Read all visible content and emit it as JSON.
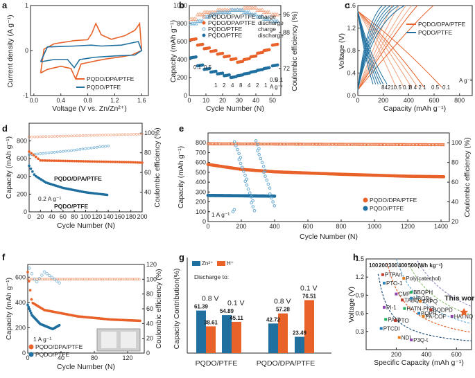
{
  "colors": {
    "orange": "#e8622a",
    "blue": "#1f6f9f",
    "light_orange": "#f0a07a",
    "light_blue": "#66a9d3",
    "grey": "#999999",
    "bar_orange": "#e8622a",
    "bar_blue": "#1f6f9f"
  },
  "chart_data": [
    {
      "panel": "a",
      "type": "line",
      "xlabel": "Voltage (V vs. Zn/Zn²⁺)",
      "ylabel": "Current density (A g⁻¹)",
      "xlim": [
        0,
        1.6
      ],
      "ylim": [
        -1,
        1
      ],
      "xticks": [
        "0.0",
        "0.4",
        "0.8",
        "1.2",
        "1.6"
      ],
      "yticks": [
        "-1",
        "0",
        "1"
      ],
      "series": [
        {
          "name": "PQDO/DPA/PTFE",
          "loop": [
            [
              0.1,
              -0.5
            ],
            [
              0.2,
              -0.42
            ],
            [
              0.4,
              -0.35
            ],
            [
              0.55,
              -0.4
            ],
            [
              0.62,
              -0.63
            ],
            [
              0.7,
              -0.3
            ],
            [
              0.95,
              -0.22
            ],
            [
              1.1,
              -0.18
            ],
            [
              1.3,
              -0.14
            ],
            [
              1.45,
              -0.1
            ],
            [
              1.6,
              0
            ],
            [
              1.57,
              0.6
            ],
            [
              1.5,
              0.45
            ],
            [
              1.35,
              0.33
            ],
            [
              1.15,
              0.25
            ],
            [
              1.0,
              0.35
            ],
            [
              0.92,
              0.6
            ],
            [
              0.86,
              0.38
            ],
            [
              0.8,
              0.24
            ],
            [
              0.6,
              0.22
            ],
            [
              0.3,
              0.15
            ],
            [
              0.15,
              0.03
            ],
            [
              0.1,
              -0.5
            ]
          ]
        },
        {
          "name": "PQDO/PTFE",
          "loop": [
            [
              0.1,
              -0.25
            ],
            [
              0.3,
              -0.2
            ],
            [
              0.5,
              -0.2
            ],
            [
              0.6,
              -0.38
            ],
            [
              0.68,
              -0.2
            ],
            [
              0.9,
              -0.15
            ],
            [
              1.2,
              -0.12
            ],
            [
              1.5,
              -0.1
            ],
            [
              1.6,
              0
            ],
            [
              1.55,
              0.2
            ],
            [
              1.3,
              0.12
            ],
            [
              1.0,
              0.1
            ],
            [
              0.85,
              0.12
            ],
            [
              0.6,
              0.1
            ],
            [
              0.2,
              0.08
            ],
            [
              0.1,
              -0.25
            ]
          ]
        }
      ]
    },
    {
      "panel": "b",
      "type": "scatter",
      "xlabel": "Cycle Number (N)",
      "ylabel": "Capacity (mAh g⁻¹)",
      "y2label": "Coulombic efficiency (%)",
      "xlim": [
        0,
        55
      ],
      "ylim": [
        0,
        1000
      ],
      "y2lim": [
        60,
        100
      ],
      "xticks": [
        "0",
        "10",
        "20",
        "30",
        "40",
        "50"
      ],
      "yticks": [
        "0",
        "200",
        "400",
        "600",
        "800",
        "1000"
      ],
      "y2ticks": [
        "72",
        "88",
        "96"
      ],
      "rates": [
        "0.1",
        "0.5",
        "1",
        "2",
        "4",
        "8",
        "4",
        "2",
        "1",
        "0.5",
        "0.1",
        "A g⁻¹"
      ],
      "series": [
        {
          "name": "PQDO/DPA/PTFE charge",
          "y_axis": "right",
          "values": [
            94,
            96,
            97,
            97,
            98,
            98,
            98,
            98,
            99,
            99,
            98,
            97,
            96
          ]
        },
        {
          "name": "PQDO/DPA/PTFE discharge",
          "values": [
            620,
            560,
            520,
            490,
            460,
            430,
            400,
            370,
            400,
            430,
            470,
            500,
            560
          ]
        },
        {
          "name": "PQDO/PTFE charge",
          "y_axis": "right",
          "values": [
            92,
            93,
            95,
            96,
            97,
            97,
            98,
            98,
            97,
            96,
            95,
            94,
            93
          ]
        },
        {
          "name": "PQDO/PTFE discharge",
          "values": [
            420,
            330,
            290,
            260,
            240,
            220,
            200,
            220,
            240,
            260,
            280,
            300,
            330
          ]
        }
      ]
    },
    {
      "panel": "c",
      "type": "line",
      "xlabel": "Capacity (mAh g⁻¹)",
      "ylabel": "Voltage (V)",
      "xlim": [
        0,
        900
      ],
      "ylim": [
        0,
        1.6
      ],
      "xticks": [
        "0",
        "200",
        "400",
        "600",
        "800"
      ],
      "yticks": [
        "0.0",
        "0.4",
        "0.8",
        "1.2",
        "1.6"
      ],
      "legend": [
        "PQDO/DPA/PTFE",
        "PQDO/PTFE"
      ],
      "rates_orange": "8 4 2 1",
      "rates_orange2": "0.5",
      "rates_orange3": "0.1",
      "rates_blue": "84210.5 0.1",
      "unit": "A g⁻¹",
      "orange_caps": [
        300,
        360,
        420,
        470,
        520,
        660
      ],
      "blue_caps": [
        120,
        140,
        160,
        180,
        200,
        230
      ]
    },
    {
      "panel": "d",
      "type": "scatter",
      "xlabel": "Cycle Number (N)",
      "ylabel": "Capacity (mAh g⁻¹)",
      "y2label": "Coulombic efficiency (%)",
      "xlim": [
        0,
        200
      ],
      "ylim": [
        0,
        1000
      ],
      "y2lim": [
        20,
        110
      ],
      "xticks": [
        "0",
        "20",
        "40",
        "60",
        "80",
        "100",
        "120",
        "140",
        "160",
        "180",
        "200"
      ],
      "yticks": [
        "0",
        "200",
        "400",
        "600",
        "800"
      ],
      "y2ticks": [
        "40",
        "60",
        "80",
        "100"
      ],
      "rate_label": "0.2 A g⁻¹",
      "series": [
        {
          "name": "PQDO/DPA/PTFE",
          "values": [
            [
              0,
              680
            ],
            [
              20,
              580
            ],
            [
              60,
              575
            ],
            [
              100,
              570
            ],
            [
              140,
              565
            ],
            [
              180,
              560
            ],
            [
              200,
              555
            ]
          ]
        },
        {
          "name": "PQDO/PTFE",
          "values": [
            [
              0,
              520
            ],
            [
              10,
              410
            ],
            [
              30,
              330
            ],
            [
              60,
              270
            ],
            [
              100,
              220
            ],
            [
              140,
              190
            ]
          ]
        },
        {
          "name": "PQDO/DPA/PTFE CE",
          "y_axis": "right",
          "values": [
            [
              0,
              96
            ],
            [
              200,
              99
            ]
          ]
        },
        {
          "name": "PQDO/PTFE CE",
          "y_axis": "right",
          "values": [
            [
              0,
              78
            ],
            [
              70,
              82
            ],
            [
              140,
              87
            ]
          ]
        }
      ]
    },
    {
      "panel": "e",
      "type": "scatter",
      "xlabel": "Cycle Number (N)",
      "ylabel": "Capacity (mAh g⁻¹)",
      "y2label": "Coulombic efficiency (%)",
      "xlim": [
        0,
        1450
      ],
      "ylim": [
        0,
        900
      ],
      "y2lim": [
        20,
        110
      ],
      "xticks": [
        "0",
        "200",
        "400",
        "600",
        "800",
        "1000",
        "1200",
        "1400"
      ],
      "yticks": [
        "0",
        "100",
        "200",
        "300",
        "400",
        "500",
        "600",
        "700",
        "800"
      ],
      "y2ticks": [
        "20",
        "40",
        "60",
        "80",
        "100"
      ],
      "rate_label": "1 A g⁻¹",
      "legend": [
        "PQDO/DPA/PTFE",
        "PQDO/PTFE"
      ],
      "series": [
        {
          "name": "PQDO/DPA/PTFE",
          "values": [
            [
              0,
              580
            ],
            [
              200,
              530
            ],
            [
              400,
              505
            ],
            [
              800,
              480
            ],
            [
              1200,
              460
            ],
            [
              1420,
              455
            ]
          ]
        },
        {
          "name": "PQDO/PTFE",
          "values": [
            [
              0,
              265
            ],
            [
              400,
              258
            ]
          ]
        }
      ]
    },
    {
      "panel": "f",
      "type": "scatter",
      "xlabel": "Cycle Number (N)",
      "ylabel": "Capacity (mAh g⁻¹)",
      "y2label": "Coulombic efficiency (%)",
      "xlim": [
        0,
        140
      ],
      "ylim": [
        0,
        700
      ],
      "y2lim": [
        0,
        120
      ],
      "xticks": [
        "0",
        "40",
        "80",
        "120"
      ],
      "yticks": [
        "0",
        "200",
        "400",
        "600"
      ],
      "y2ticks": [
        "0",
        "20",
        "40",
        "60",
        "80",
        "100",
        "120"
      ],
      "rate_label": "1 A g⁻¹",
      "legend": [
        "PQDO/DPA/PTFE",
        "PQDO/PTFE"
      ],
      "series": [
        {
          "name": "PQDO/DPA/PTFE",
          "values": [
            [
              0,
              640
            ],
            [
              5,
              400
            ],
            [
              20,
              340
            ],
            [
              60,
              290
            ],
            [
              100,
              265
            ],
            [
              135,
              255
            ]
          ]
        },
        {
          "name": "PQDO/PTFE",
          "values": [
            [
              0,
              380
            ],
            [
              5,
              300
            ],
            [
              15,
              230
            ],
            [
              30,
              190
            ],
            [
              38,
              220
            ]
          ]
        }
      ]
    },
    {
      "panel": "g",
      "type": "bar",
      "ylabel": "Capacity Contribution(%)",
      "legend": [
        "Zn²⁺",
        "H⁺"
      ],
      "heading": "Discharge to:",
      "groups": [
        "PQDO/PTFE",
        "PQDO/DPA/PTFE"
      ],
      "subgroups": [
        {
          "voltage": "0.8 V",
          "zn": 61.39,
          "h": 38.61
        },
        {
          "voltage": "0.1 V",
          "zn": 54.89,
          "h": 45.11
        },
        {
          "voltage": "0.8 V",
          "zn": 42.72,
          "h": 57.28
        },
        {
          "voltage": "0.1 V",
          "zn": 23.49,
          "h": 76.51
        }
      ]
    },
    {
      "panel": "h",
      "type": "scatter",
      "xlabel": "Specific Capacity (mAh g⁻¹)",
      "ylabel": "Voltage (V)",
      "xlim": [
        0,
        700
      ],
      "ylim": [
        0,
        1.5
      ],
      "xticks": [
        "200",
        "400",
        "600"
      ],
      "yticks": [
        "0.3",
        "0.6",
        "0.9",
        "1.2",
        "1.5"
      ],
      "energy_labels": [
        "100",
        "200",
        "300",
        "400",
        "500",
        "(Wh kg⁻¹)"
      ],
      "this_work": "This work",
      "points": [
        {
          "name": "PTPAn",
          "x": 110,
          "y": 1.24
        },
        {
          "name": "PTO-1",
          "x": 120,
          "y": 1.1
        },
        {
          "name": "Poly(catechol)",
          "x": 250,
          "y": 1.18
        },
        {
          "name": "CMP",
          "x": 200,
          "y": 0.92
        },
        {
          "name": "BBQPH",
          "x": 300,
          "y": 0.95
        },
        {
          "name": "TABQ",
          "x": 240,
          "y": 0.82
        },
        {
          "name": "HBQBs",
          "x": 300,
          "y": 0.85
        },
        {
          "name": "ZAPQ",
          "x": 360,
          "y": 0.8
        },
        {
          "name": "PI-1",
          "x": 120,
          "y": 0.7
        },
        {
          "name": "HATN-PNZ",
          "x": 255,
          "y": 0.68
        },
        {
          "name": "BQDPD",
          "x": 430,
          "y": 0.66
        },
        {
          "name": "BQPH",
          "x": 350,
          "y": 0.6
        },
        {
          "name": "PA-COF",
          "x": 380,
          "y": 0.55
        },
        {
          "name": "HATNQ",
          "x": 570,
          "y": 0.55
        },
        {
          "name": "PANI",
          "x": 130,
          "y": 0.5
        },
        {
          "name": "PTO",
          "x": 195,
          "y": 0.48
        },
        {
          "name": "PTCDI",
          "x": 100,
          "y": 0.35
        },
        {
          "name": "NDI",
          "x": 220,
          "y": 0.2
        },
        {
          "name": "P3Q-t",
          "x": 300,
          "y": 0.16
        },
        {
          "name": "This work",
          "x": 650,
          "y": 0.62
        }
      ]
    }
  ],
  "panel_labels": [
    "a",
    "b",
    "c",
    "d",
    "e",
    "f",
    "g",
    "h"
  ]
}
